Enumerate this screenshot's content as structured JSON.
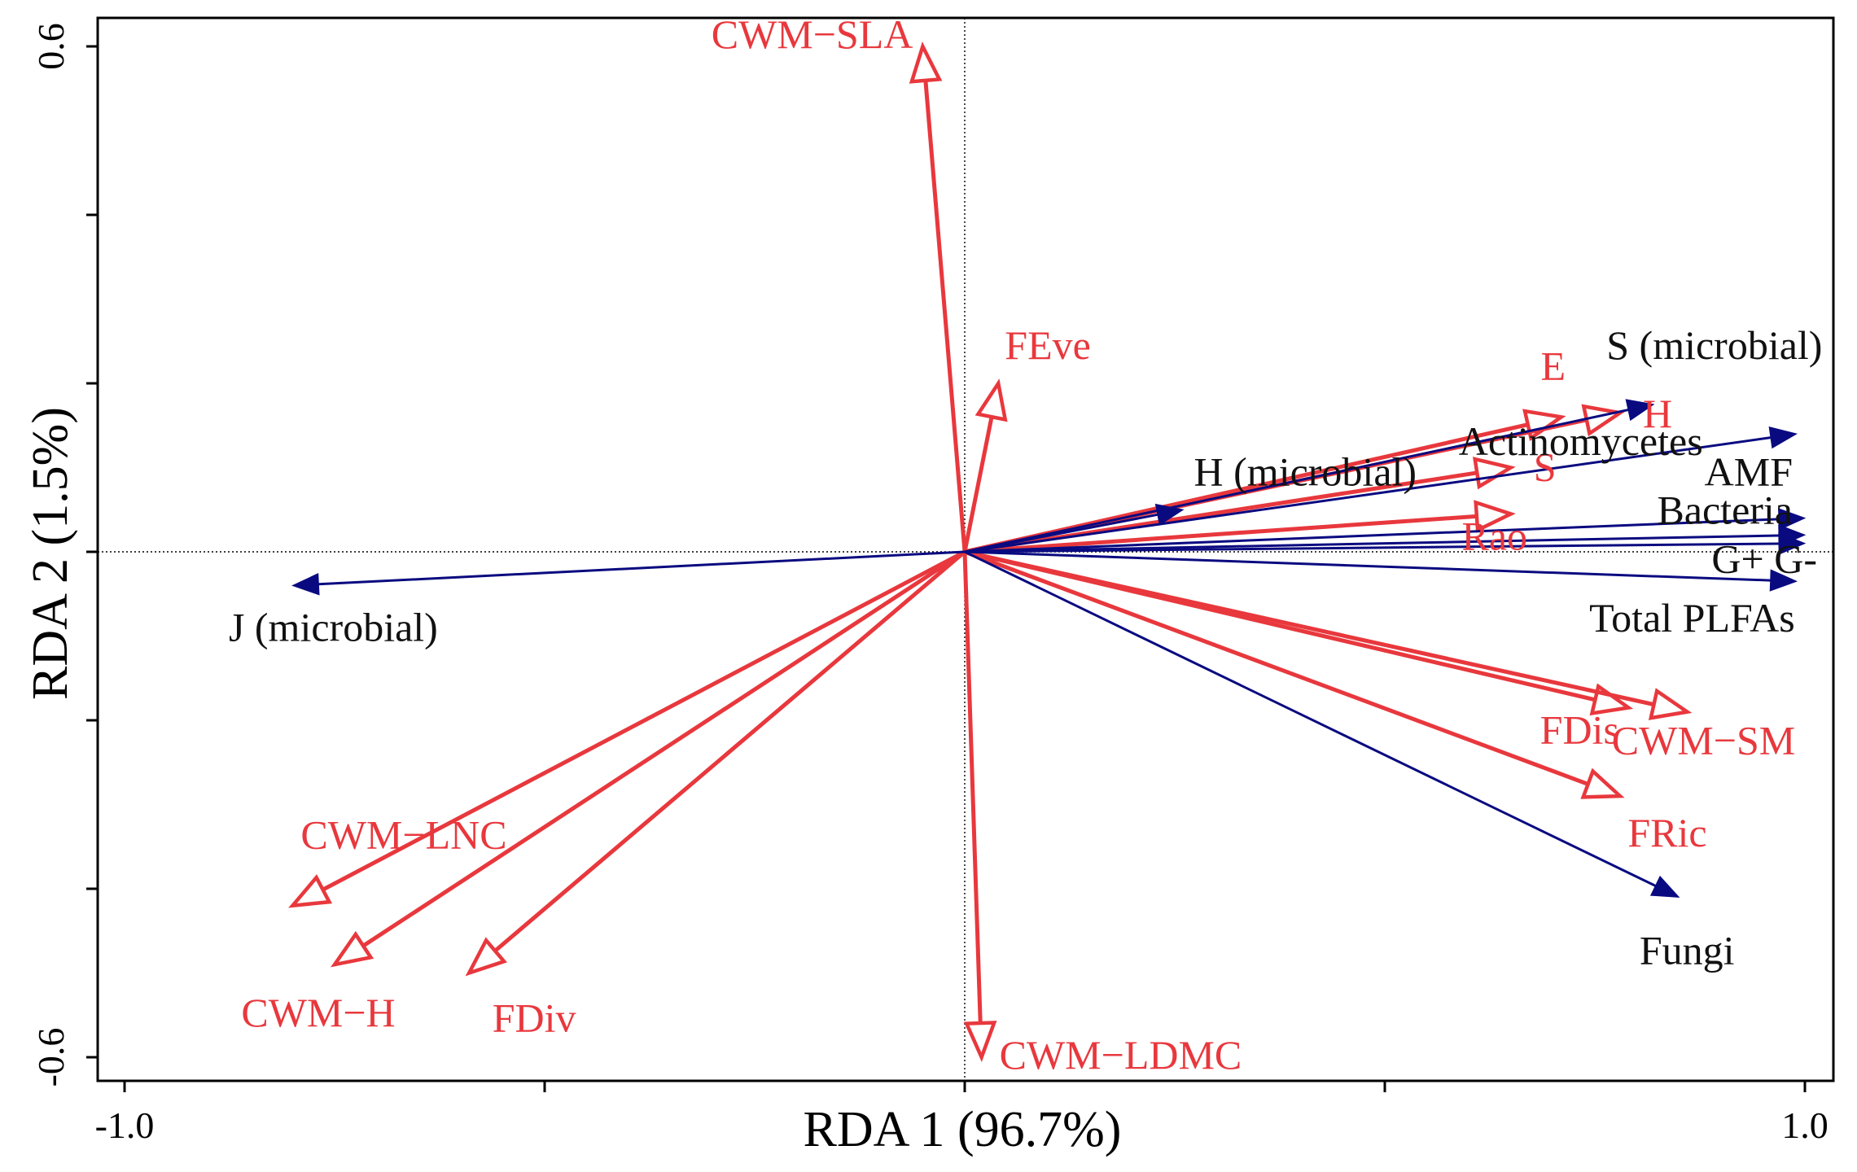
{
  "chart_data": {
    "type": "scatter",
    "subtype": "rda-biplot",
    "title": "",
    "xlabel": "RDA 1 (96.7%)",
    "ylabel": "RDA 2 (1.5%)",
    "xlim": [
      -1.0,
      1.0
    ],
    "ylim": [
      -0.6,
      0.6
    ],
    "x_ticks": [
      -1.0,
      -0.5,
      0,
      0.5,
      1.0
    ],
    "x_tick_labels": [
      "-1.0",
      "",
      "",
      "",
      "1.0"
    ],
    "y_ticks": [
      -0.6,
      -0.4,
      -0.2,
      0,
      0.2,
      0.4,
      0.6
    ],
    "y_tick_labels": [
      "-0.6",
      "",
      "",
      "",
      "",
      "",
      "0.6"
    ],
    "reference_lines": "dotted at x = 0 and y = 0",
    "grid": false,
    "colors": {
      "plant": "#e8383d",
      "microbial": "#0a0a80",
      "axis": "#000000"
    },
    "series": [
      {
        "color": "#e8383d",
        "arrowhead": "open",
        "vectors": [
          {
            "label": "CWM−SLA",
            "x": -0.05,
            "y": 0.6
          },
          {
            "label": "FEve",
            "x": 0.04,
            "y": 0.2
          },
          {
            "label": "E",
            "x": 0.71,
            "y": 0.16
          },
          {
            "label": "H",
            "x": 0.78,
            "y": 0.165
          },
          {
            "label": "S",
            "x": 0.65,
            "y": 0.1
          },
          {
            "label": "Rao",
            "x": 0.65,
            "y": 0.045
          },
          {
            "label": "FDis",
            "x": 0.79,
            "y": -0.185
          },
          {
            "label": "CWM−SM",
            "x": 0.86,
            "y": -0.19
          },
          {
            "label": "FRic",
            "x": 0.78,
            "y": -0.29
          },
          {
            "label": "CWM−LNC",
            "x": -0.8,
            "y": -0.42
          },
          {
            "label": "CWM−H",
            "x": -0.75,
            "y": -0.49
          },
          {
            "label": "FDiv",
            "x": -0.59,
            "y": -0.5
          },
          {
            "label": "CWM−LDMC",
            "x": 0.02,
            "y": -0.6
          }
        ]
      },
      {
        "color": "#0a0a80",
        "arrowhead": "filled",
        "vectors": [
          {
            "label": "S (microbial)",
            "x": 0.82,
            "y": 0.175
          },
          {
            "label": "H (microbial)",
            "x": 0.26,
            "y": 0.05
          },
          {
            "label": "Actinomycetes",
            "x": 0.99,
            "y": 0.14
          },
          {
            "label": "AMF",
            "x": 1.0,
            "y": 0.04
          },
          {
            "label": "Bacteria",
            "x": 1.0,
            "y": 0.02
          },
          {
            "label": "G+ G-",
            "x": 1.0,
            "y": 0.01
          },
          {
            "label": "Total PLFAs",
            "x": 0.99,
            "y": -0.035
          },
          {
            "label": "Fungi",
            "x": 0.85,
            "y": -0.41
          },
          {
            "label": "J (microbial)",
            "x": -0.8,
            "y": -0.04
          }
        ]
      }
    ]
  }
}
